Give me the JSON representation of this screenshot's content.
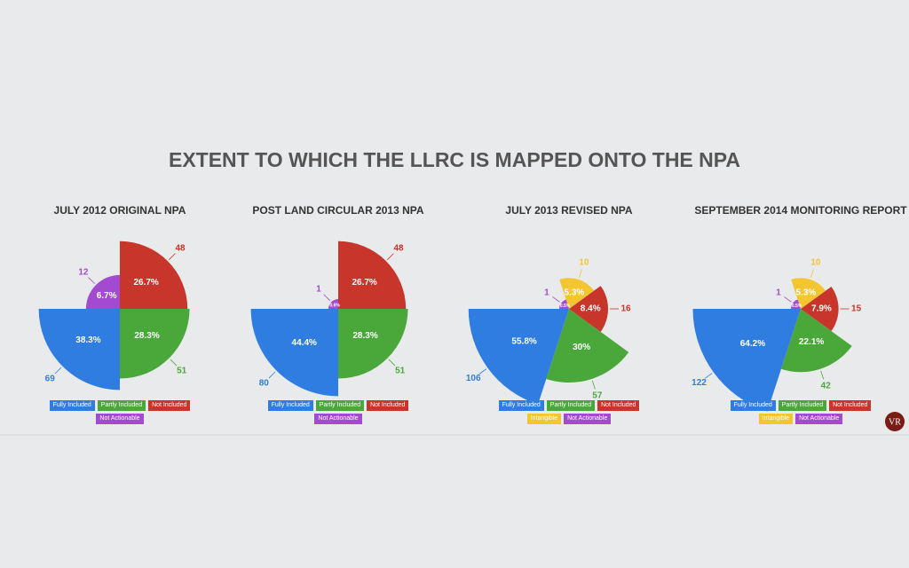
{
  "title": "EXTENT TO WHICH THE LLRC IS MAPPED ONTO THE NPA",
  "logo": "VR",
  "chart_data": [
    {
      "type": "polar",
      "title": "JULY 2012 ORIGINAL NPA",
      "categories": [
        "Fully Included",
        "Partly Included",
        "Not Included",
        "Not Actionable"
      ],
      "colors": [
        "#2f7de1",
        "#4aa83a",
        "#c8352a",
        "#a24bd1"
      ],
      "values": [
        69,
        51,
        48,
        12
      ],
      "share_labels": [
        "38.3%",
        "28.3%",
        "26.7%",
        "6.7%"
      ]
    },
    {
      "type": "polar",
      "title": "POST LAND CIRCULAR 2013 NPA",
      "categories": [
        "Fully Included",
        "Partly Included",
        "Not Included",
        "Not Actionable"
      ],
      "colors": [
        "#2f7de1",
        "#4aa83a",
        "#c8352a",
        "#a24bd1"
      ],
      "values": [
        80,
        51,
        48,
        1
      ],
      "share_labels": [
        "44.4%",
        "28.3%",
        "26.7%",
        "0.6%"
      ]
    },
    {
      "type": "polar",
      "title": "JULY 2013 REVISED NPA",
      "categories": [
        "Fully Included",
        "Partly Included",
        "Not Included",
        "Intangible",
        "Not Actionable"
      ],
      "colors": [
        "#2f7de1",
        "#4aa83a",
        "#c8352a",
        "#f3c631",
        "#a24bd1"
      ],
      "values": [
        106,
        57,
        16,
        10,
        1
      ],
      "share_labels": [
        "55.8%",
        "30%",
        "8.4%",
        "5.3%",
        "0.5%"
      ]
    },
    {
      "type": "polar",
      "title": "SEPTEMBER 2014 MONITORING REPORT",
      "categories": [
        "Fully Included",
        "Partly Included",
        "Not Included",
        "Intangible",
        "Not Actionable"
      ],
      "colors": [
        "#2f7de1",
        "#4aa83a",
        "#c8352a",
        "#f3c631",
        "#a24bd1"
      ],
      "values": [
        122,
        42,
        15,
        10,
        1
      ],
      "share_labels": [
        "64.2%",
        "22.1%",
        "7.9%",
        "5.3%",
        "0.5%"
      ]
    }
  ]
}
